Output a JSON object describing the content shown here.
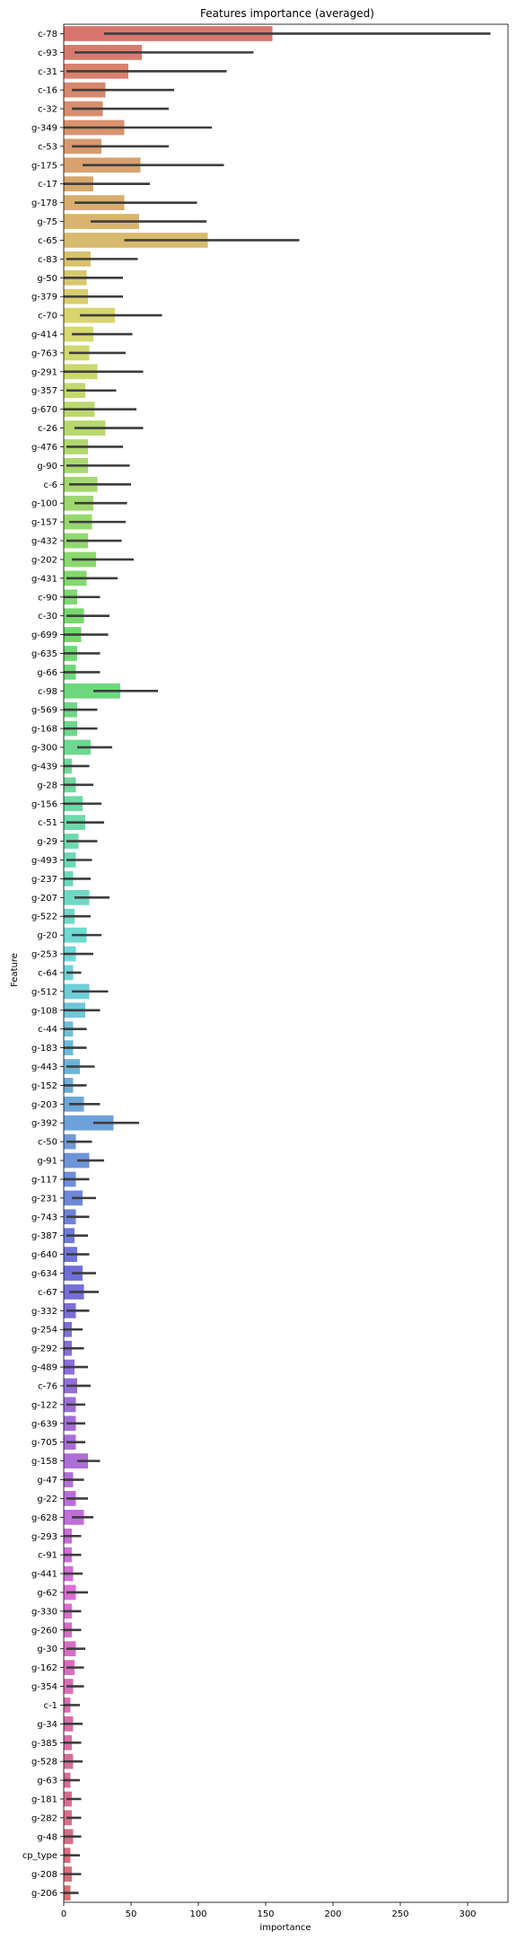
{
  "chart_data": {
    "type": "bar",
    "orientation": "horizontal",
    "title": "Features importance (averaged)",
    "xlabel": "importance",
    "ylabel": "Feature",
    "xlim": [
      0,
      330
    ],
    "xticks": [
      0,
      50,
      100,
      150,
      200,
      250,
      300
    ],
    "grid": false,
    "legend": "none",
    "error_bars": true,
    "categories": [
      "c-78",
      "c-93",
      "c-31",
      "c-16",
      "c-32",
      "g-349",
      "c-53",
      "g-175",
      "c-17",
      "g-178",
      "g-75",
      "c-65",
      "c-83",
      "g-50",
      "g-379",
      "c-70",
      "g-414",
      "g-763",
      "g-291",
      "g-357",
      "g-670",
      "c-26",
      "g-476",
      "g-90",
      "c-6",
      "g-100",
      "g-157",
      "g-432",
      "g-202",
      "g-431",
      "c-90",
      "c-30",
      "g-699",
      "g-635",
      "g-66",
      "c-98",
      "g-569",
      "g-168",
      "g-300",
      "g-439",
      "g-28",
      "g-156",
      "c-51",
      "g-29",
      "g-493",
      "g-237",
      "g-207",
      "g-522",
      "g-20",
      "g-253",
      "c-64",
      "g-512",
      "g-108",
      "c-44",
      "g-183",
      "g-443",
      "g-152",
      "g-203",
      "g-392",
      "c-50",
      "g-91",
      "g-117",
      "g-231",
      "g-743",
      "g-387",
      "g-640",
      "g-634",
      "c-67",
      "g-332",
      "g-254",
      "g-292",
      "g-489",
      "c-76",
      "g-122",
      "g-639",
      "g-705",
      "g-158",
      "g-47",
      "g-22",
      "g-628",
      "g-293",
      "c-91",
      "g-441",
      "g-62",
      "g-330",
      "g-260",
      "g-30",
      "g-162",
      "g-354",
      "c-1",
      "g-34",
      "g-385",
      "g-528",
      "g-63",
      "g-181",
      "g-282",
      "g-48",
      "cp_type",
      "g-208",
      "g-206"
    ],
    "values": [
      155,
      58,
      48,
      31,
      29,
      45,
      28,
      57,
      22,
      45,
      56,
      107,
      20,
      17,
      18,
      38,
      22,
      19,
      25,
      16,
      23,
      31,
      18,
      18,
      25,
      22,
      21,
      18,
      24,
      17,
      10,
      15,
      13,
      10,
      9,
      42,
      10,
      10,
      20,
      6,
      9,
      14,
      16,
      11,
      9,
      7,
      19,
      8,
      17,
      9,
      7,
      19,
      16,
      7,
      7,
      12,
      7,
      15,
      37,
      9,
      19,
      9,
      14,
      9,
      8,
      10,
      14,
      15,
      9,
      6,
      6,
      8,
      10,
      9,
      9,
      9,
      18,
      7,
      9,
      15,
      6,
      6,
      7,
      9,
      6,
      6,
      9,
      8,
      7,
      5,
      7,
      6,
      7,
      5,
      6,
      6,
      7,
      5,
      6,
      5
    ],
    "errors": [
      [
        30,
        317
      ],
      [
        8,
        141
      ],
      [
        2,
        121
      ],
      [
        6,
        82
      ],
      [
        6,
        78
      ],
      [
        0,
        110
      ],
      [
        6,
        78
      ],
      [
        14,
        119
      ],
      [
        0,
        64
      ],
      [
        8,
        99
      ],
      [
        20,
        106
      ],
      [
        45,
        175
      ],
      [
        2,
        55
      ],
      [
        0,
        44
      ],
      [
        0,
        44
      ],
      [
        12,
        73
      ],
      [
        6,
        51
      ],
      [
        4,
        46
      ],
      [
        0,
        59
      ],
      [
        2,
        39
      ],
      [
        0,
        54
      ],
      [
        8,
        59
      ],
      [
        2,
        44
      ],
      [
        2,
        49
      ],
      [
        4,
        50
      ],
      [
        8,
        47
      ],
      [
        4,
        46
      ],
      [
        2,
        43
      ],
      [
        6,
        52
      ],
      [
        2,
        40
      ],
      [
        0,
        27
      ],
      [
        2,
        34
      ],
      [
        0,
        33
      ],
      [
        0,
        27
      ],
      [
        0,
        27
      ],
      [
        22,
        70
      ],
      [
        0,
        25
      ],
      [
        0,
        25
      ],
      [
        10,
        36
      ],
      [
        0,
        19
      ],
      [
        0,
        22
      ],
      [
        0,
        28
      ],
      [
        2,
        30
      ],
      [
        2,
        25
      ],
      [
        2,
        21
      ],
      [
        0,
        20
      ],
      [
        8,
        34
      ],
      [
        0,
        20
      ],
      [
        6,
        28
      ],
      [
        0,
        22
      ],
      [
        2,
        13
      ],
      [
        6,
        33
      ],
      [
        0,
        27
      ],
      [
        0,
        17
      ],
      [
        0,
        17
      ],
      [
        2,
        23
      ],
      [
        0,
        17
      ],
      [
        4,
        27
      ],
      [
        22,
        56
      ],
      [
        2,
        21
      ],
      [
        10,
        30
      ],
      [
        0,
        19
      ],
      [
        6,
        24
      ],
      [
        2,
        19
      ],
      [
        2,
        18
      ],
      [
        2,
        19
      ],
      [
        6,
        24
      ],
      [
        4,
        26
      ],
      [
        2,
        19
      ],
      [
        0,
        14
      ],
      [
        0,
        15
      ],
      [
        0,
        18
      ],
      [
        2,
        20
      ],
      [
        2,
        16
      ],
      [
        2,
        16
      ],
      [
        2,
        16
      ],
      [
        10,
        27
      ],
      [
        0,
        15
      ],
      [
        2,
        18
      ],
      [
        6,
        22
      ],
      [
        0,
        13
      ],
      [
        0,
        13
      ],
      [
        0,
        14
      ],
      [
        2,
        18
      ],
      [
        0,
        13
      ],
      [
        0,
        13
      ],
      [
        2,
        16
      ],
      [
        2,
        15
      ],
      [
        2,
        15
      ],
      [
        0,
        12
      ],
      [
        0,
        14
      ],
      [
        0,
        13
      ],
      [
        0,
        14
      ],
      [
        0,
        12
      ],
      [
        2,
        13
      ],
      [
        2,
        13
      ],
      [
        0,
        13
      ],
      [
        0,
        12
      ],
      [
        0,
        13
      ],
      [
        0,
        11
      ]
    ]
  }
}
